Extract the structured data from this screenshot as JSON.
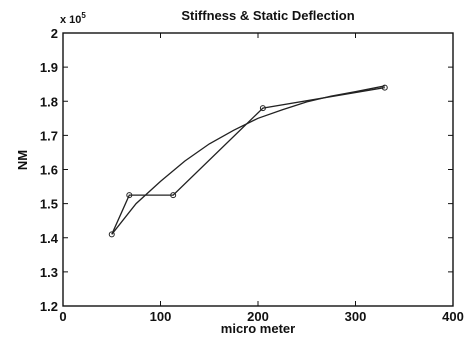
{
  "chart_data": {
    "type": "line",
    "title": "Stiffness & Static Deflection",
    "xlabel": "micro meter",
    "ylabel": "NM",
    "y_multiplier_label": "x 10",
    "y_multiplier_exp": "5",
    "xlim": [
      0,
      400
    ],
    "ylim": [
      1.2,
      2.0
    ],
    "xticks": [
      0,
      100,
      200,
      300,
      400
    ],
    "xtick_labels": [
      "0",
      "100",
      "200",
      "300",
      "400"
    ],
    "yticks": [
      1.2,
      1.3,
      1.4,
      1.5,
      1.6,
      1.7,
      1.8,
      1.9,
      2.0
    ],
    "ytick_labels": [
      "1.2",
      "1.3",
      "1.4",
      "1.5",
      "1.6",
      "1.7",
      "1.8",
      "1.9",
      "2"
    ],
    "grid": false,
    "legend": "none",
    "series": [
      {
        "style": "line-with-circle-markers",
        "x": [
          50,
          68,
          113,
          205,
          330
        ],
        "y": [
          1.41,
          1.525,
          1.525,
          1.78,
          1.84
        ]
      },
      {
        "style": "smooth-fit",
        "x": [
          50,
          75,
          100,
          125,
          150,
          175,
          200,
          225,
          250,
          275,
          300,
          330
        ],
        "y": [
          1.41,
          1.5,
          1.565,
          1.625,
          1.675,
          1.715,
          1.75,
          1.775,
          1.798,
          1.815,
          1.828,
          1.845
        ]
      }
    ]
  }
}
